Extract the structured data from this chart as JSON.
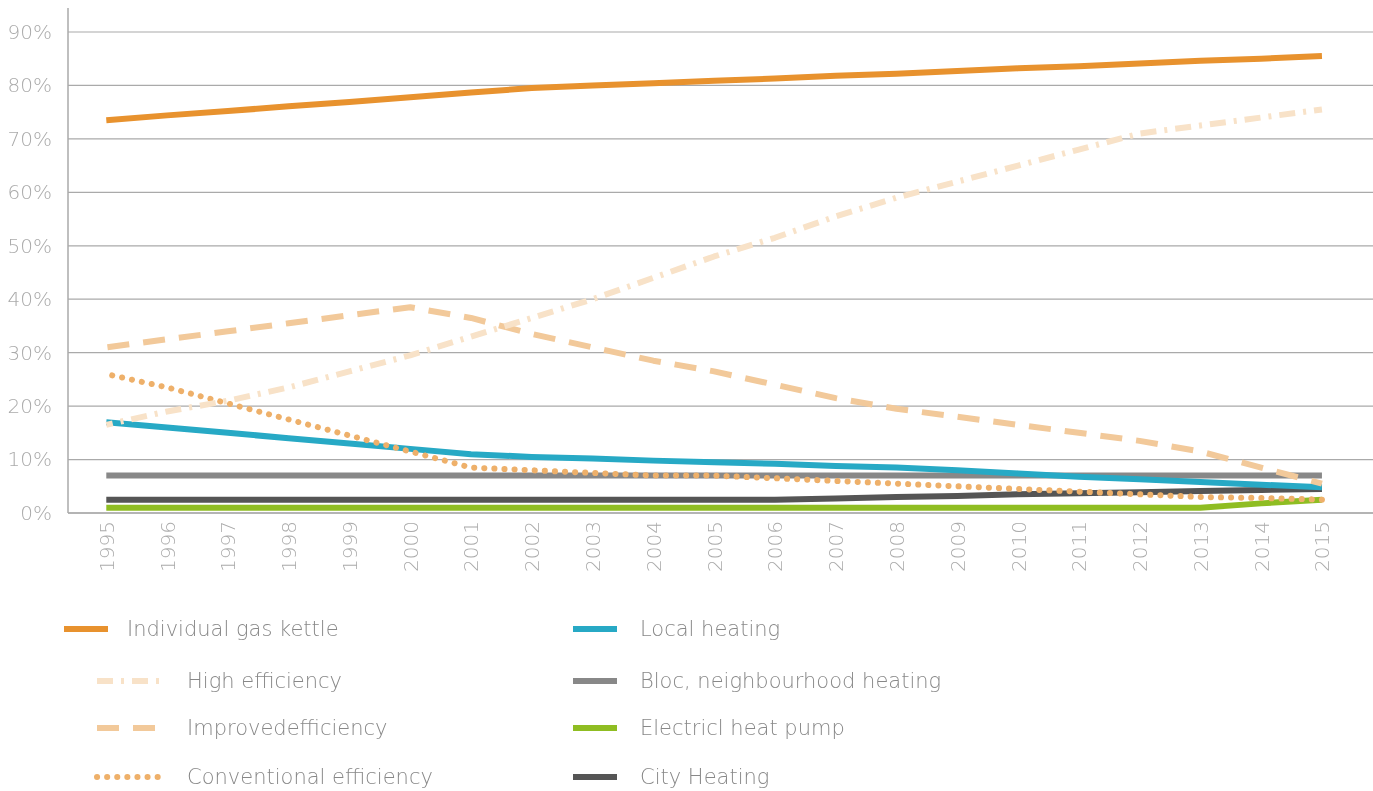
{
  "chart_data": {
    "type": "line",
    "x": [
      1995,
      1996,
      1997,
      1998,
      1999,
      2000,
      2001,
      2002,
      2003,
      2004,
      2005,
      2006,
      2007,
      2008,
      2009,
      2010,
      2011,
      2012,
      2013,
      2014,
      2015
    ],
    "xlim": [
      1994.37,
      2015.84
    ],
    "xticks": [
      1995,
      1996,
      1997,
      1998,
      1999,
      2000,
      2001,
      2002,
      2003,
      2004,
      2005,
      2006,
      2007,
      2008,
      2009,
      2010,
      2011,
      2012,
      2013,
      2014,
      2015
    ],
    "ylim": [
      0,
      90
    ],
    "yticks": [
      {
        "value": 0,
        "label": "0%"
      },
      {
        "value": 10,
        "label": "10%"
      },
      {
        "value": 20,
        "label": "20%"
      },
      {
        "value": 30,
        "label": "30%"
      },
      {
        "value": 40,
        "label": "40%"
      },
      {
        "value": 50,
        "label": "50%"
      },
      {
        "value": 60,
        "label": "60%"
      },
      {
        "value": 70,
        "label": "70%"
      },
      {
        "value": 80,
        "label": "80%"
      },
      {
        "value": 90,
        "label": "90%"
      }
    ],
    "grid": "y",
    "legend": "bottom",
    "series": [
      {
        "name": "Individual gas kettle",
        "color": "#e8922e",
        "line_style": "solid",
        "values": [
          73.5,
          74.4,
          75.2,
          76.1,
          76.9,
          77.8,
          78.7,
          79.5,
          80,
          80.4,
          80.9,
          81.3,
          81.8,
          82.2,
          82.7,
          83.2,
          83.6,
          84.1,
          84.6,
          85,
          85.5
        ]
      },
      {
        "name": "High efficiency",
        "color": "#f8e2c8",
        "line_style": "dashdot",
        "values": [
          16.5,
          19,
          21,
          23.5,
          26.5,
          29.5,
          33,
          36.5,
          40,
          44,
          48,
          51.5,
          55.5,
          59,
          62,
          65,
          68,
          71,
          72.5,
          74,
          75.5
        ]
      },
      {
        "name": "Improvedefficiency",
        "color": "#f2c99a",
        "line_style": "dashed",
        "values": [
          31,
          32.5,
          34,
          35.5,
          37,
          38.5,
          36.5,
          33.5,
          31,
          28.5,
          26.5,
          24,
          21.5,
          19.5,
          18,
          16.5,
          15,
          13.5,
          11.5,
          8.5,
          5.5
        ]
      },
      {
        "name": "Conventional efficiency",
        "color": "#eeb06a",
        "line_style": "dotted",
        "values": [
          26,
          23.5,
          20.5,
          17.5,
          14.5,
          11.5,
          8.5,
          8,
          7.5,
          7,
          7,
          6.5,
          6,
          5.5,
          5,
          4.5,
          4,
          3.5,
          3,
          2.8,
          2.5
        ]
      },
      {
        "name": "Local heating",
        "color": "#27a9c5",
        "line_style": "solid",
        "values": [
          17,
          16,
          15,
          14,
          13,
          12,
          11,
          10.5,
          10.2,
          9.8,
          9.5,
          9.2,
          8.8,
          8.5,
          8,
          7.4,
          6.8,
          6.3,
          5.8,
          5.3,
          4.8
        ]
      },
      {
        "name": "Bloc, neighbourhood heating",
        "color": "#888888",
        "line_style": "solid",
        "values": [
          7,
          7,
          7,
          7,
          7,
          7,
          7,
          7,
          7,
          7,
          7,
          7,
          7,
          7,
          7,
          7,
          7,
          7,
          7,
          7,
          7
        ]
      },
      {
        "name": "Electricl heat pump",
        "color": "#8fbd22",
        "line_style": "solid",
        "values": [
          1,
          1,
          1,
          1,
          1,
          1,
          1,
          1,
          1,
          1,
          1,
          1,
          1,
          1,
          1,
          1,
          1,
          1,
          1,
          1.8,
          2.5
        ]
      },
      {
        "name": "City Heating",
        "color": "#555555",
        "line_style": "solid",
        "values": [
          2.5,
          2.5,
          2.5,
          2.5,
          2.5,
          2.5,
          2.5,
          2.5,
          2.5,
          2.5,
          2.5,
          2.5,
          2.7,
          3,
          3.2,
          3.5,
          3.7,
          3.9,
          4.1,
          4.3,
          4.5
        ]
      }
    ]
  }
}
